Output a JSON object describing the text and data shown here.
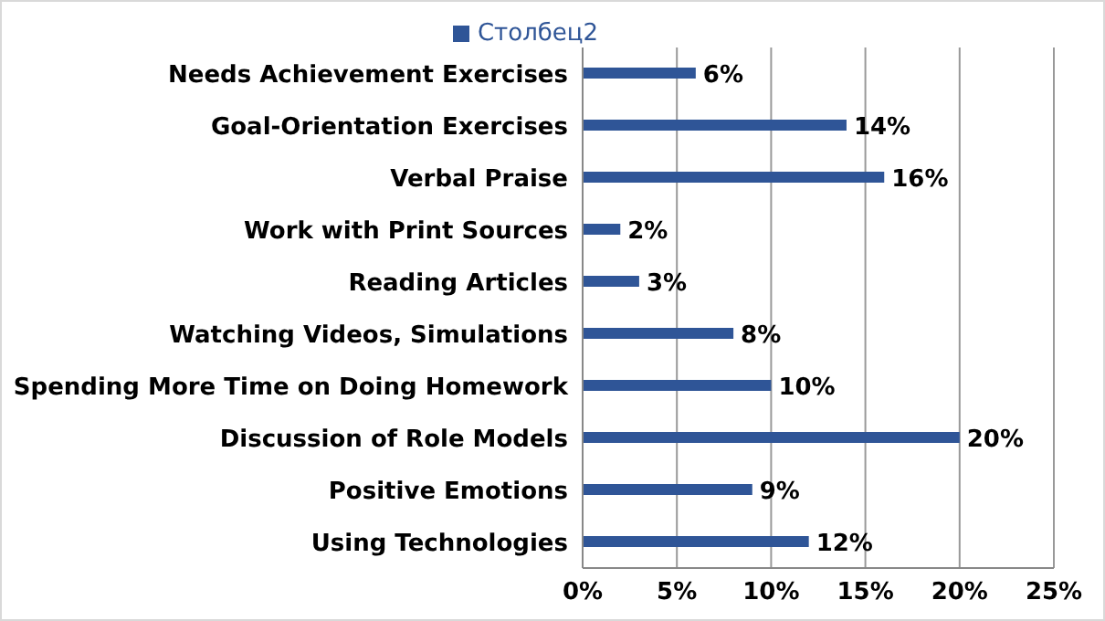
{
  "chart_data": {
    "type": "bar",
    "orientation": "horizontal",
    "categories": [
      "Needs Achievement Exercises",
      "Goal-Orientation Exercises",
      "Verbal Praise",
      "Work with Print Sources",
      "Reading Articles",
      "Watching Videos, Simulations",
      "Spending More Time on Doing Homework",
      "Discussion of Role Models ",
      "Positive Emotions",
      "Using Technologies"
    ],
    "series": [
      {
        "name": "Столбец2",
        "color": "#2f5597",
        "values": [
          6,
          14,
          16,
          2,
          3,
          8,
          10,
          20,
          9,
          12
        ],
        "value_labels": [
          "6%",
          "14%",
          "16%",
          "2%",
          "3%",
          "8%",
          "10%",
          "20%",
          "9%",
          "12%"
        ]
      }
    ],
    "xlim": [
      0,
      25
    ],
    "xticks": [
      {
        "value": 0,
        "label": "0%"
      },
      {
        "value": 5,
        "label": "5%"
      },
      {
        "value": 10,
        "label": "10%"
      },
      {
        "value": 15,
        "label": "15%"
      },
      {
        "value": 20,
        "label": "20%"
      },
      {
        "value": 25,
        "label": "25%"
      }
    ],
    "grid": "x",
    "legend": "top"
  }
}
